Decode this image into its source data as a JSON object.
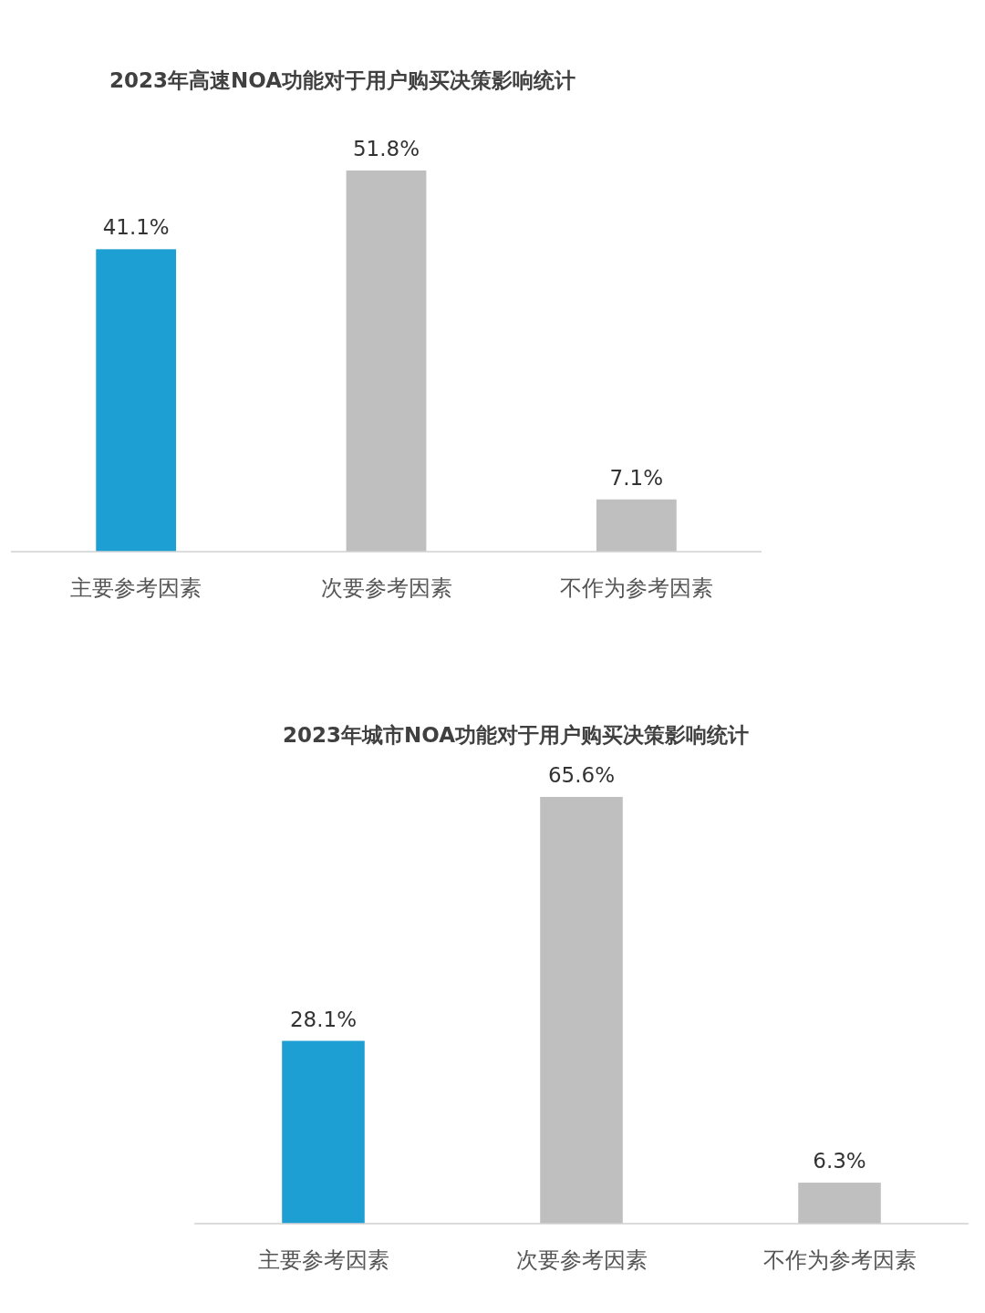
{
  "chart_data": [
    {
      "type": "bar",
      "title": "2023年高速NOA功能对于用户购买决策影响统计",
      "categories": [
        "主要参考因素",
        "次要参考因素",
        "不作为参考因素"
      ],
      "values": [
        41.1,
        51.8,
        7.1
      ],
      "colors": [
        "#1e9fd4",
        "#bfbfbf",
        "#bfbfbf"
      ],
      "value_labels": [
        "41.1%",
        "51.8%",
        "7.1%"
      ]
    },
    {
      "type": "bar",
      "title": "2023年城市NOA功能对于用户购买决策影响统计",
      "categories": [
        "主要参考因素",
        "次要参考因素",
        "不作为参考因素"
      ],
      "values": [
        28.1,
        65.6,
        6.3
      ],
      "colors": [
        "#1e9fd4",
        "#bfbfbf",
        "#bfbfbf"
      ],
      "value_labels": [
        "28.1%",
        "65.6%",
        "6.3%"
      ]
    }
  ]
}
